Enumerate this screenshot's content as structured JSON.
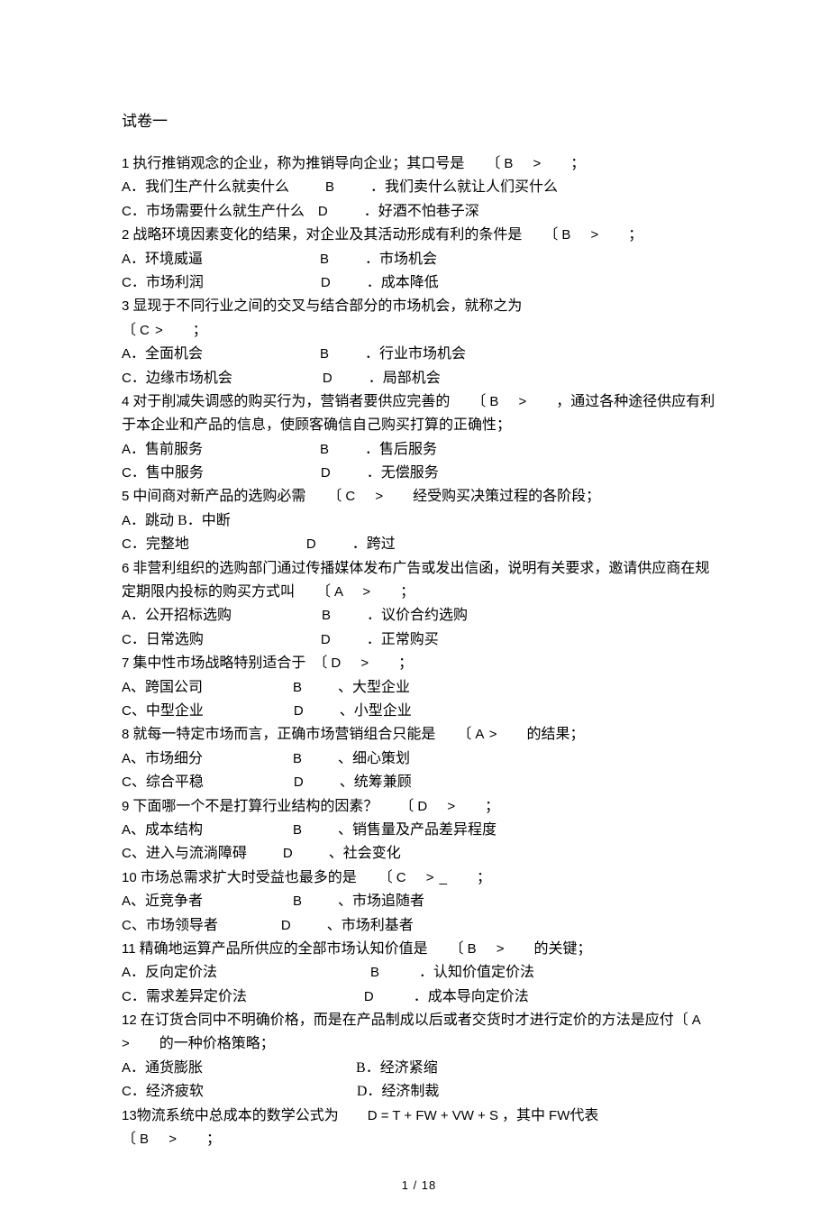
{
  "title": "试卷一",
  "page_number": "1 / 18",
  "colors": {
    "text": "#000000",
    "background": "#ffffff"
  },
  "typography": {
    "body_font_family": "SimSun",
    "latin_font_family": "Arial",
    "body_size_pt": 12,
    "latin_size_pt": 11,
    "line_height": 1.65
  },
  "questions": [
    {
      "n": "1",
      "stem_pre": " 执行推销观念的企业，称为推销导向企业；其口号是　　〔 ",
      "ans": "B　 >",
      "stem_post": "　　；",
      "optA": "我们生产什么就卖什么",
      "optB": "．我们卖什么就让人们买什么",
      "optC": "市场需要什么就生产什么",
      "optD": "．好酒不怕巷子深",
      "padAB": "med",
      "padCD": "small"
    },
    {
      "n": "2",
      "stem_pre": " 战略环境因素变化的结果，对企业及其活动形成有利的条件是　　〔 ",
      "ans": "B　  >",
      "stem_post": "　　；",
      "optA": "环境威逼",
      "optB": "．市场机会",
      "optC": "市场利润",
      "optD": "．成本降低",
      "padAB": "xxl",
      "padCD": "xxl"
    },
    {
      "n": "3",
      "stem_pre": " 显现于不同行业之间的交叉与结合部分的市场机会，就称之为",
      "ans": "",
      "stem_post": "",
      "line2_pre": "〔  ",
      "line2_ans": "C  >",
      "line2_post": "　　；",
      "optA": "全面机会",
      "optB": "．行业市场机会",
      "optC": "边缘市场机会",
      "optD": "．局部机会",
      "padAB": "xxl",
      "padCD": "xl"
    },
    {
      "n": "4",
      "stem_pre": " 对于削减失调感的购买行为，营销者要供应完善的　　〔 ",
      "ans": "B　 >",
      "stem_post": "　　，通过各种途径供应有利于本企业和产品的信息，使顾客确信自己购买打算的正确性；",
      "optA": "售前服务",
      "optB": "．售后服务",
      "optC": "售中服务",
      "optD": "．无偿服务",
      "padAB": "xxl",
      "padCD": "xxl"
    },
    {
      "n": "5",
      "stem_pre": " 中间商对新产品的选购必需　　〔 ",
      "ans": "C　 >",
      "stem_post": "　　经受购买决策过程的各阶段；",
      "optA": "跳动",
      "optA2": "B．中断",
      "optC": "完整地",
      "optD": "．跨过",
      "singleAB": true,
      "padCD": "xxl"
    },
    {
      "n": "6",
      "stem_pre": " 非营利组织的选购部门通过传播媒体发布广告或发出信函，说明有关要求，邀请供应商在规定期限内投标的购买方式叫　　〔  ",
      "ans": "A　 >",
      "stem_post": "　　；",
      "optA": "公开招标选购",
      "optB": "．议价合约选购",
      "optC": "日常选购",
      "optD": "．正常购买",
      "padAB": "xl",
      "padCD": "xxl"
    },
    {
      "n": "7",
      "stem_pre": " 集中性市场战略特别适合于　〔 ",
      "ans": "D　 >",
      "stem_post": "　　；",
      "optA_sep": "、",
      "optA": "跨国公司",
      "optB": "、大型企业",
      "optC_sep": "、",
      "optC": "中型企业",
      "optD": "、小型企业",
      "padAB": "xl",
      "padCD": "xl"
    },
    {
      "n": "8",
      "stem_pre": " 就每一特定市场而言，正确市场营销组合只能是　　〔  ",
      "ans": "A  >",
      "stem_post": "　　的结果；",
      "optA_sep": "、",
      "optA": "市场细分",
      "optB": "、细心策划",
      "optC_sep": "、",
      "optC": "综合平稳",
      "optD": "、统筹兼顾",
      "padAB": "xl",
      "padCD": "xl"
    },
    {
      "n": "9",
      "stem_pre": " 下面哪一个不是打算行业结构的因素？　　〔 ",
      "ans": "D　 >",
      "stem_post": "　　；",
      "optA_sep": "、",
      "optA": "成本结构",
      "optB": "、销售量及产品差异程度",
      "optC_sep": "、",
      "optC": "进入与流淌障碍",
      "optD": "、社会变化",
      "padAB": "xl",
      "padCD": "med"
    },
    {
      "n": "10",
      "stem_pre": " 市场总需求扩大时受益也最多的是　　〔  ",
      "ans": "C　 >  _",
      "stem_post": "　　；",
      "optA_sep": "、",
      "optA": "近竞争者",
      "optB": "、市场追随者",
      "optC_sep": "、",
      "optC": "市场领导者",
      "optD": "、市场利基者",
      "padAB": "xl",
      "padCD": "lg"
    },
    {
      "n": "11",
      "stem_pre": " 精确地运算产品所供应的全部市场认知价值是　　〔  ",
      "ans": "B　 >",
      "stem_post": "　　的关键；",
      "optA": "反向定价法",
      "optB": " ．认知价值定价法",
      "optC": "需求差异定价法",
      "optD": " ．成本导向定价法",
      "padAB": "huge",
      "padCD": "xxl"
    },
    {
      "n": "12",
      "stem_pre": " 在订货合同中不明确价格，而是在产品制成以后或者交货时才进行定价的方法是应付〔  ",
      "ans": "A　 >",
      "stem_post": "　　的一种价格策略；",
      "optA": "通货膨胀",
      "optB": "B．经济紧缩",
      "optC": "经济疲软",
      "optD": "D．经济制裁",
      "noB": true,
      "noD": true,
      "padAB": "huge",
      "padCD": "huge"
    },
    {
      "n": "13",
      "stem_pre": "物流系统中总成本的数学公式为　　",
      "formula": "D = T + FW + VW + S",
      "stem_mid": " ，其中  ",
      "formula2": "FW",
      "stem_post2": "代表",
      "line2_pre": "〔  ",
      "line2_ans": "B　 >",
      "line2_post": "　　；"
    }
  ]
}
